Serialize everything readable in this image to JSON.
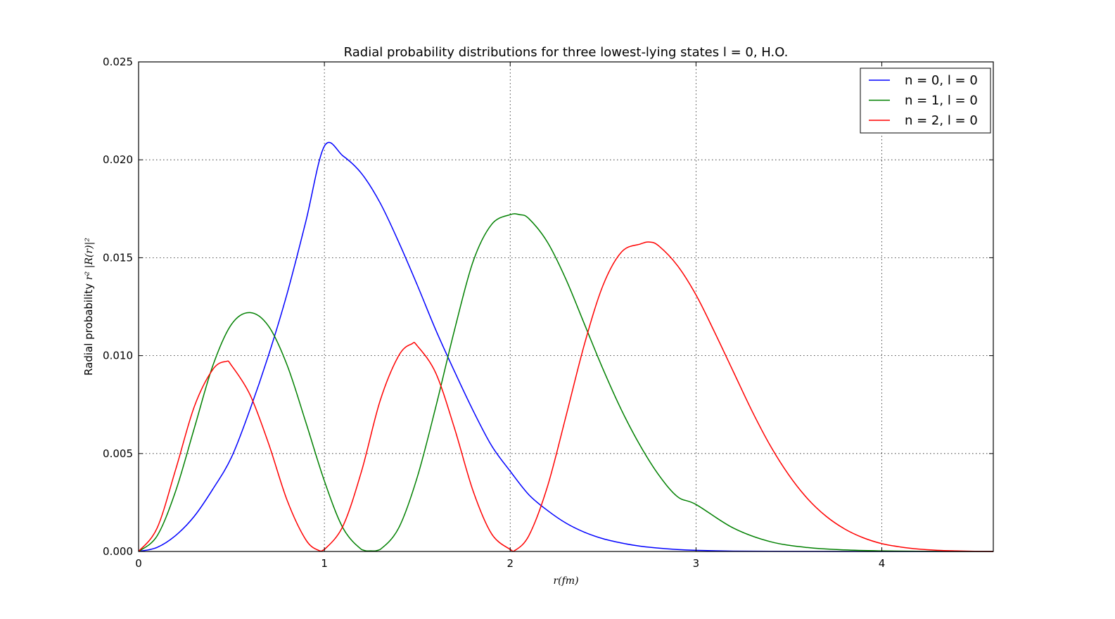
{
  "chart_data": {
    "type": "line",
    "title": "Radial probability distributions for three lowest-lying states l = 0, H.O.",
    "xlabel": "r(fm)",
    "ylabel_prefix": "Radial probability ",
    "ylabel_math": "r² |R(r)|²",
    "xlim": [
      0,
      4.6
    ],
    "ylim": [
      0,
      0.025
    ],
    "xticks": [
      0,
      1,
      2,
      3,
      4
    ],
    "xtick_labels": [
      "0",
      "1",
      "2",
      "3",
      "4"
    ],
    "yticks": [
      0,
      0.005,
      0.01,
      0.015,
      0.02,
      0.025
    ],
    "ytick_labels": [
      "0.000",
      "0.005",
      "0.010",
      "0.015",
      "0.020",
      "0.025"
    ],
    "grid": true,
    "legend_position": "top-right",
    "series": [
      {
        "name": "n = 0, l = 0",
        "color": "#0000ff",
        "x": [
          0,
          0.1,
          0.2,
          0.3,
          0.4,
          0.5,
          0.6,
          0.7,
          0.8,
          0.9,
          1.0,
          1.1,
          1.2,
          1.3,
          1.4,
          1.5,
          1.6,
          1.7,
          1.8,
          1.9,
          2.0,
          2.1,
          2.2,
          2.3,
          2.4,
          2.5,
          2.6,
          2.7,
          2.8,
          2.9,
          3.0,
          3.2,
          3.4,
          3.6,
          3.8,
          4.0,
          4.2,
          4.4,
          4.6
        ],
        "y": [
          0,
          0.00021,
          0.00082,
          0.0018,
          0.00319,
          0.00481,
          0.00726,
          0.01004,
          0.01319,
          0.01685,
          0.0207,
          0.0202,
          0.0193,
          0.0178,
          0.0158,
          0.0136,
          0.0113,
          0.0092,
          0.0072,
          0.0054,
          0.0041,
          0.0029,
          0.0021,
          0.00145,
          0.00098,
          0.00065,
          0.00043,
          0.00027,
          0.00017,
          0.0001,
          6e-05,
          2e-05,
          8e-06,
          3e-06,
          1e-06,
          0,
          0,
          0,
          0
        ]
      },
      {
        "name": "n = 1, l = 0",
        "color": "#008000",
        "x": [
          0,
          0.1,
          0.2,
          0.3,
          0.4,
          0.5,
          0.6,
          0.7,
          0.8,
          0.9,
          1.0,
          1.1,
          1.2,
          1.25,
          1.3,
          1.4,
          1.5,
          1.6,
          1.7,
          1.8,
          1.9,
          2.0,
          2.05,
          2.1,
          2.2,
          2.3,
          2.4,
          2.5,
          2.6,
          2.7,
          2.8,
          2.9,
          3.0,
          3.2,
          3.4,
          3.6,
          3.8,
          4.0,
          4.2,
          4.4,
          4.6
        ],
        "y": [
          0,
          0.0008,
          0.0031,
          0.0063,
          0.0095,
          0.0116,
          0.0122,
          0.0115,
          0.0095,
          0.0066,
          0.0036,
          0.0012,
          0.0001,
          3e-05,
          0.0001,
          0.0012,
          0.0038,
          0.0074,
          0.0113,
          0.0148,
          0.0167,
          0.0172,
          0.0172,
          0.017,
          0.0158,
          0.0139,
          0.0116,
          0.0093,
          0.0072,
          0.0054,
          0.0039,
          0.0028,
          0.0024,
          0.0012,
          0.0005,
          0.0002,
          8e-05,
          3e-05,
          1e-05,
          0,
          0
        ]
      },
      {
        "name": "n = 2, l = 0",
        "color": "#ff0000",
        "x": [
          0,
          0.1,
          0.2,
          0.3,
          0.4,
          0.47,
          0.5,
          0.6,
          0.7,
          0.8,
          0.9,
          0.97,
          1.0,
          1.1,
          1.2,
          1.3,
          1.4,
          1.47,
          1.5,
          1.6,
          1.7,
          1.8,
          1.9,
          2.0,
          2.02,
          2.1,
          2.2,
          2.3,
          2.4,
          2.5,
          2.6,
          2.7,
          2.75,
          2.8,
          2.9,
          3.0,
          3.1,
          3.2,
          3.3,
          3.4,
          3.5,
          3.6,
          3.7,
          3.8,
          3.9,
          4.0,
          4.1,
          4.2,
          4.3,
          4.4,
          4.5,
          4.6
        ],
        "y": [
          0,
          0.0012,
          0.0042,
          0.0074,
          0.0093,
          0.0097,
          0.0095,
          0.008,
          0.0055,
          0.0026,
          0.0006,
          5e-05,
          0.0001,
          0.0013,
          0.0041,
          0.0077,
          0.01,
          0.0106,
          0.0105,
          0.0091,
          0.0063,
          0.0031,
          0.0009,
          0.0001,
          2e-05,
          0.0008,
          0.0033,
          0.0069,
          0.0106,
          0.0136,
          0.0153,
          0.0157,
          0.0158,
          0.0156,
          0.0146,
          0.0131,
          0.0112,
          0.0092,
          0.0072,
          0.0054,
          0.0039,
          0.0027,
          0.0018,
          0.00115,
          0.0007,
          0.0004,
          0.00023,
          0.00012,
          6e-05,
          3e-05,
          1e-05,
          0
        ]
      }
    ]
  }
}
